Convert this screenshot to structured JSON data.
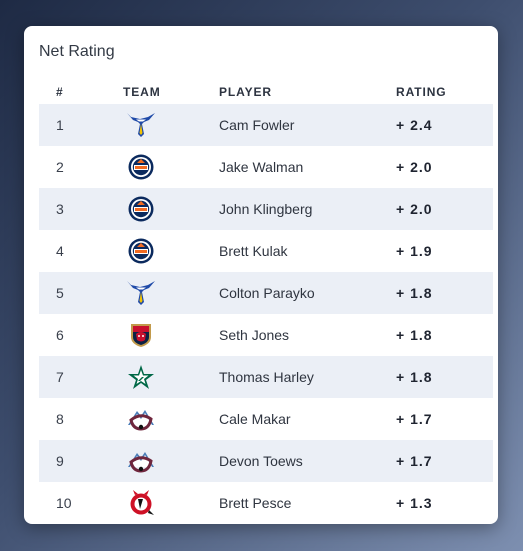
{
  "title": "Net Rating",
  "columns": {
    "rank": "#",
    "team": "TEAM",
    "player": "PLAYER",
    "rating": "RATING"
  },
  "rows": [
    {
      "rank": "1",
      "team_icon": "blues-logo-icon",
      "player": "Cam Fowler",
      "rating": "+ 2.4"
    },
    {
      "rank": "2",
      "team_icon": "oilers-logo-icon",
      "player": "Jake Walman",
      "rating": "+ 2.0"
    },
    {
      "rank": "3",
      "team_icon": "oilers-logo-icon",
      "player": "John Klingberg",
      "rating": "+ 2.0"
    },
    {
      "rank": "4",
      "team_icon": "oilers-logo-icon",
      "player": "Brett Kulak",
      "rating": "+ 1.9"
    },
    {
      "rank": "5",
      "team_icon": "blues-logo-icon",
      "player": "Colton Parayko",
      "rating": "+ 1.8"
    },
    {
      "rank": "6",
      "team_icon": "panthers-logo-icon",
      "player": "Seth Jones",
      "rating": "+ 1.8"
    },
    {
      "rank": "7",
      "team_icon": "stars-logo-icon",
      "player": "Thomas Harley",
      "rating": "+ 1.8"
    },
    {
      "rank": "8",
      "team_icon": "avalanche-logo-icon",
      "player": "Cale Makar",
      "rating": "+ 1.7"
    },
    {
      "rank": "9",
      "team_icon": "avalanche-logo-icon",
      "player": "Devon Toews",
      "rating": "+ 1.7"
    },
    {
      "rank": "10",
      "team_icon": "devils-logo-icon",
      "player": "Brett Pesce",
      "rating": "+ 1.3"
    }
  ],
  "colors": {
    "row_alt": "#ebeff6",
    "blues": "#1f4aa8",
    "oilers_blue": "#0b2a5e",
    "oilers_orange": "#f26b21",
    "panthers_red": "#c8102e",
    "panthers_gold": "#c29a4b",
    "stars_green": "#006847",
    "avalanche_burgundy": "#6f263d",
    "avalanche_blue": "#4a7db8",
    "devils_red": "#ce1126"
  }
}
